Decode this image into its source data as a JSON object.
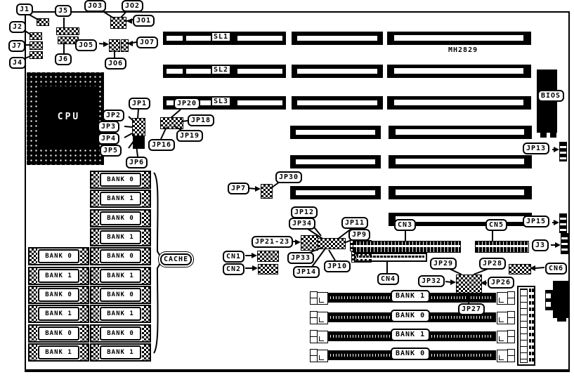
{
  "diagram": {
    "type": "motherboard-jumper-location-diagram",
    "model_text": "MH2829",
    "colors": {
      "fg": "#000000",
      "bg": "#ffffff"
    }
  },
  "labels": {
    "cpu": "CPU",
    "bios": "BIOS",
    "cache": "CACHE",
    "slots": [
      "SL1",
      "SL2",
      "SL3"
    ]
  },
  "callouts": {
    "j1": "J1",
    "j2": "J2",
    "j3": "J3",
    "j4": "J4",
    "j5": "J5",
    "j6": "J6",
    "j7": "J7",
    "jo1": "JO1",
    "jo2": "JO2",
    "jo3": "JO3",
    "jo5": "JO5",
    "jo6": "JO6",
    "jo7": "JO7",
    "jp1": "JP1",
    "jp2": "JP2",
    "jp3": "JP3",
    "jp4": "JP4",
    "jp5": "JP5",
    "jp6": "JP6",
    "jp7": "JP7",
    "jp9": "JP9",
    "jp10": "JP10",
    "jp11": "JP11",
    "jp12": "JP12",
    "jp13": "JP13",
    "jp14": "JP14",
    "jp15": "JP15",
    "jp16": "JP16",
    "jp18": "JP18",
    "jp19": "JP19",
    "jp20": "JP20",
    "jp21_23": "JP21-23",
    "jp26": "JP26",
    "jp27": "JP27",
    "jp28": "JP28",
    "jp29": "JP29",
    "jp30": "JP30",
    "jp32": "JP32",
    "jp33": "JP33",
    "jp34": "JP34",
    "cn1": "CN1",
    "cn2": "CN2",
    "cn3": "CN3",
    "cn4": "CN4",
    "cn5": "CN5",
    "cn6": "CN6"
  },
  "memory": {
    "left_column": [
      "BANK 0",
      "BANK 1",
      "BANK 0",
      "BANK 1",
      "BANK 0",
      "BANK 1"
    ],
    "middle_column": [
      "BANK 0",
      "BANK 1",
      "BANK 0",
      "BANK 1",
      "BANK 0",
      "BANK 1",
      "BANK 0",
      "BANK 1",
      "BANK 0",
      "BANK 1"
    ],
    "simm_sockets": [
      "BANK 1",
      "BANK 0",
      "BANK 1",
      "BANK 0"
    ]
  }
}
